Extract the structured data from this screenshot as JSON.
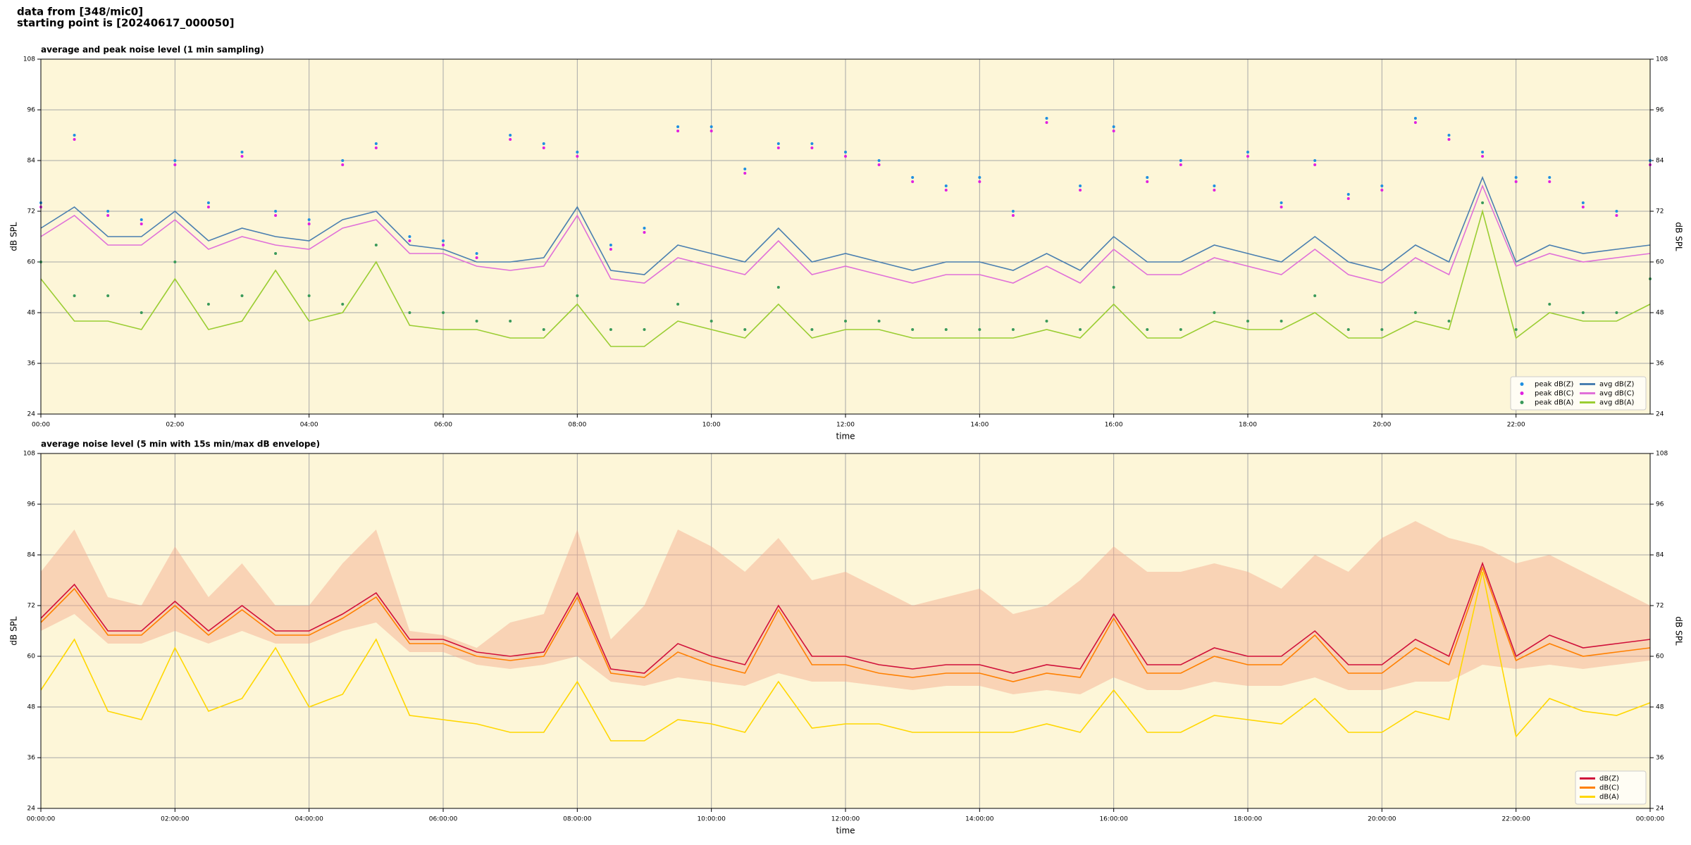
{
  "header": [
    "data from [348/mic0]",
    "starting point is [20240617_000050]"
  ],
  "chart_data": [
    {
      "type": "line",
      "title": "average and peak noise level (1 min sampling)",
      "xlabel": "time",
      "ylabel": "dB SPL",
      "background": "#fdf6d8",
      "grid": true,
      "legend": "lower right",
      "legend_columns": 2,
      "x": [
        0,
        0.5,
        1,
        1.5,
        2,
        2.5,
        3,
        3.5,
        4,
        4.5,
        5,
        5.5,
        6,
        6.5,
        7,
        7.5,
        8,
        8.5,
        9,
        9.5,
        10,
        10.5,
        11,
        11.5,
        12,
        12.5,
        13,
        13.5,
        14,
        14.5,
        15,
        15.5,
        16,
        16.5,
        17,
        17.5,
        18,
        18.5,
        19,
        19.5,
        20,
        20.5,
        21,
        21.5,
        22,
        22.5,
        23,
        23.5,
        24
      ],
      "xlim": [
        0,
        24
      ],
      "xticks": [
        {
          "value": 0,
          "label": "00:00"
        },
        {
          "value": 2,
          "label": "02:00"
        },
        {
          "value": 4,
          "label": "04:00"
        },
        {
          "value": 6,
          "label": "06:00"
        },
        {
          "value": 8,
          "label": "08:00"
        },
        {
          "value": 10,
          "label": "10:00"
        },
        {
          "value": 12,
          "label": "12:00"
        },
        {
          "value": 14,
          "label": "14:00"
        },
        {
          "value": 16,
          "label": "16:00"
        },
        {
          "value": 18,
          "label": "18:00"
        },
        {
          "value": 20,
          "label": "20:00"
        },
        {
          "value": 22,
          "label": "22:00"
        }
      ],
      "ylim": [
        24,
        108
      ],
      "yticks": [
        24,
        36,
        48,
        60,
        72,
        84,
        96,
        108
      ],
      "series": [
        {
          "name": "peak dB(Z)",
          "kind": "scatter",
          "color": "#1f8fe0",
          "values": [
            74,
            90,
            72,
            70,
            84,
            74,
            86,
            72,
            70,
            84,
            88,
            66,
            65,
            62,
            90,
            88,
            86,
            64,
            68,
            92,
            92,
            82,
            88,
            88,
            86,
            84,
            80,
            78,
            80,
            72,
            94,
            78,
            92,
            80,
            84,
            78,
            86,
            74,
            84,
            76,
            78,
            94,
            90,
            86,
            80,
            80,
            74,
            72,
            84
          ]
        },
        {
          "name": "peak dB(C)",
          "kind": "scatter",
          "color": "#e020e0",
          "values": [
            73,
            89,
            71,
            69,
            83,
            73,
            85,
            71,
            69,
            83,
            87,
            65,
            64,
            61,
            89,
            87,
            85,
            63,
            67,
            91,
            91,
            81,
            87,
            87,
            85,
            83,
            79,
            77,
            79,
            71,
            93,
            77,
            91,
            79,
            83,
            77,
            85,
            73,
            83,
            75,
            77,
            93,
            89,
            85,
            79,
            79,
            73,
            71,
            83
          ]
        },
        {
          "name": "peak dB(A)",
          "kind": "scatter",
          "color": "#3a9a5a",
          "values": [
            60,
            52,
            52,
            48,
            60,
            50,
            52,
            62,
            52,
            50,
            64,
            48,
            48,
            46,
            46,
            44,
            52,
            44,
            44,
            50,
            46,
            44,
            54,
            44,
            46,
            46,
            44,
            44,
            44,
            44,
            46,
            44,
            54,
            44,
            44,
            48,
            46,
            46,
            52,
            44,
            44,
            48,
            46,
            74,
            44,
            50,
            48,
            48,
            56
          ]
        },
        {
          "name": "avg dB(Z)",
          "kind": "line",
          "color": "#4a7fb0",
          "values": [
            68,
            73,
            66,
            66,
            72,
            65,
            68,
            66,
            65,
            70,
            72,
            64,
            63,
            60,
            60,
            61,
            73,
            58,
            57,
            64,
            62,
            60,
            68,
            60,
            62,
            60,
            58,
            60,
            60,
            58,
            62,
            58,
            66,
            60,
            60,
            64,
            62,
            60,
            66,
            60,
            58,
            64,
            60,
            80,
            60,
            64,
            62,
            63,
            64
          ]
        },
        {
          "name": "avg dB(C)",
          "kind": "line",
          "color": "#e070d8",
          "values": [
            66,
            71,
            64,
            64,
            70,
            63,
            66,
            64,
            63,
            68,
            70,
            62,
            62,
            59,
            58,
            59,
            71,
            56,
            55,
            61,
            59,
            57,
            65,
            57,
            59,
            57,
            55,
            57,
            57,
            55,
            59,
            55,
            63,
            57,
            57,
            61,
            59,
            57,
            63,
            57,
            55,
            61,
            57,
            78,
            59,
            62,
            60,
            61,
            62
          ]
        },
        {
          "name": "avg dB(A)",
          "kind": "line",
          "color": "#9acd32",
          "values": [
            56,
            46,
            46,
            44,
            56,
            44,
            46,
            58,
            46,
            48,
            60,
            45,
            44,
            44,
            42,
            42,
            50,
            40,
            40,
            46,
            44,
            42,
            50,
            42,
            44,
            44,
            42,
            42,
            42,
            42,
            44,
            42,
            50,
            42,
            42,
            46,
            44,
            44,
            48,
            42,
            42,
            46,
            44,
            72,
            42,
            48,
            46,
            46,
            50
          ]
        }
      ]
    },
    {
      "type": "line",
      "title": "average noise level (5 min with 15s min/max dB envelope)",
      "xlabel": "time",
      "ylabel": "dB SPL",
      "background": "#fdf6d8",
      "grid": true,
      "legend": "lower right",
      "legend_columns": 1,
      "x": [
        0,
        0.5,
        1,
        1.5,
        2,
        2.5,
        3,
        3.5,
        4,
        4.5,
        5,
        5.5,
        6,
        6.5,
        7,
        7.5,
        8,
        8.5,
        9,
        9.5,
        10,
        10.5,
        11,
        11.5,
        12,
        12.5,
        13,
        13.5,
        14,
        14.5,
        15,
        15.5,
        16,
        16.5,
        17,
        17.5,
        18,
        18.5,
        19,
        19.5,
        20,
        20.5,
        21,
        21.5,
        22,
        22.5,
        23,
        23.5,
        24
      ],
      "xlim": [
        0,
        24
      ],
      "xticks": [
        {
          "value": 0,
          "label": "00:00:00"
        },
        {
          "value": 2,
          "label": "02:00:00"
        },
        {
          "value": 4,
          "label": "04:00:00"
        },
        {
          "value": 6,
          "label": "06:00:00"
        },
        {
          "value": 8,
          "label": "08:00:00"
        },
        {
          "value": 10,
          "label": "10:00:00"
        },
        {
          "value": 12,
          "label": "12:00:00"
        },
        {
          "value": 14,
          "label": "14:00:00"
        },
        {
          "value": 16,
          "label": "16:00:00"
        },
        {
          "value": 18,
          "label": "18:00:00"
        },
        {
          "value": 20,
          "label": "20:00:00"
        },
        {
          "value": 22,
          "label": "22:00:00"
        },
        {
          "value": 24,
          "label": "00:00:00"
        }
      ],
      "ylim": [
        24,
        108
      ],
      "yticks": [
        24,
        36,
        48,
        60,
        72,
        84,
        96,
        108
      ],
      "band": {
        "color": "#f4a88c",
        "upper": [
          80,
          90,
          74,
          72,
          86,
          74,
          82,
          72,
          72,
          82,
          90,
          66,
          65,
          62,
          68,
          70,
          90,
          64,
          72,
          90,
          86,
          80,
          88,
          78,
          80,
          76,
          72,
          74,
          76,
          70,
          72,
          78,
          86,
          80,
          80,
          82,
          80,
          76,
          84,
          80,
          88,
          92,
          88,
          86,
          82,
          84,
          80,
          76,
          72
        ],
        "lower": [
          66,
          70,
          63,
          63,
          66,
          63,
          66,
          63,
          63,
          66,
          68,
          61,
          61,
          58,
          57,
          58,
          60,
          54,
          53,
          55,
          54,
          53,
          56,
          54,
          54,
          53,
          52,
          53,
          53,
          51,
          52,
          51,
          55,
          52,
          52,
          54,
          53,
          53,
          55,
          52,
          52,
          54,
          54,
          58,
          57,
          58,
          57,
          58,
          59
        ]
      },
      "series": [
        {
          "name": "dB(Z)",
          "kind": "line",
          "color": "#d0103a",
          "values": [
            69,
            77,
            66,
            66,
            73,
            66,
            72,
            66,
            66,
            70,
            75,
            64,
            64,
            61,
            60,
            61,
            75,
            57,
            56,
            63,
            60,
            58,
            72,
            60,
            60,
            58,
            57,
            58,
            58,
            56,
            58,
            57,
            70,
            58,
            58,
            62,
            60,
            60,
            66,
            58,
            58,
            64,
            60,
            82,
            60,
            65,
            62,
            63,
            64
          ]
        },
        {
          "name": "dB(C)",
          "kind": "line",
          "color": "#ff8000",
          "values": [
            68,
            76,
            65,
            65,
            72,
            65,
            71,
            65,
            65,
            69,
            74,
            63,
            63,
            60,
            59,
            60,
            74,
            56,
            55,
            61,
            58,
            56,
            71,
            58,
            58,
            56,
            55,
            56,
            56,
            54,
            56,
            55,
            69,
            56,
            56,
            60,
            58,
            58,
            65,
            56,
            56,
            62,
            58,
            81,
            59,
            63,
            60,
            61,
            62
          ]
        },
        {
          "name": "dB(A)",
          "kind": "line",
          "color": "#ffd700",
          "values": [
            52,
            64,
            47,
            45,
            62,
            47,
            50,
            62,
            48,
            51,
            64,
            46,
            45,
            44,
            42,
            42,
            54,
            40,
            40,
            45,
            44,
            42,
            54,
            43,
            44,
            44,
            42,
            42,
            42,
            42,
            44,
            42,
            52,
            42,
            42,
            46,
            45,
            44,
            50,
            42,
            42,
            47,
            45,
            80,
            41,
            50,
            47,
            46,
            49
          ]
        }
      ]
    }
  ]
}
